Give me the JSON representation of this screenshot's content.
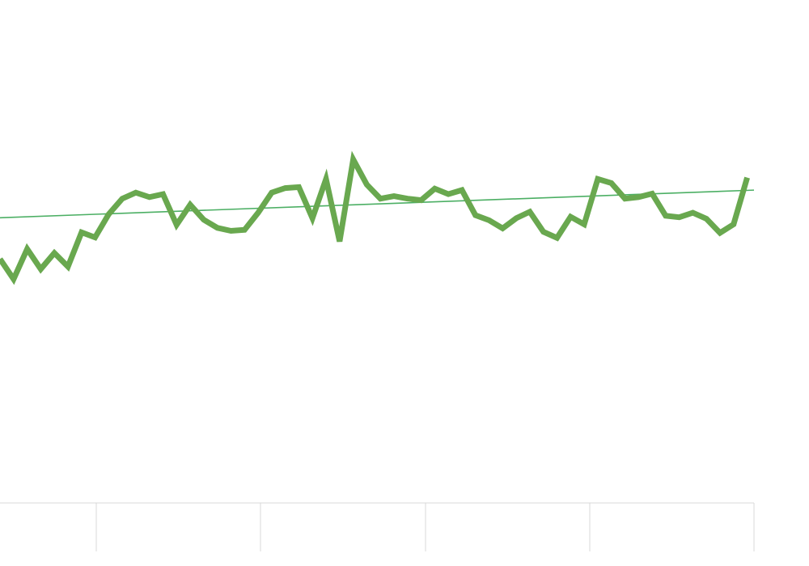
{
  "colors": {
    "series": "#69a84f",
    "trend": "#4caf64",
    "grid": "#d9d9d9",
    "background": "#ffffff"
  },
  "chart_data": {
    "type": "line",
    "title": "",
    "xlabel": "",
    "ylabel": "",
    "grid": false,
    "x": [
      0,
      1,
      2,
      3,
      4,
      5,
      6,
      7,
      8,
      9,
      10,
      11,
      12,
      13,
      14,
      15,
      16,
      17,
      18,
      19,
      20,
      21,
      22,
      23,
      24,
      25,
      26,
      27,
      28,
      29,
      30,
      31,
      32,
      33,
      34,
      35,
      36,
      37,
      38,
      39,
      40,
      41,
      42,
      43,
      44,
      45,
      46,
      47,
      48,
      49,
      50,
      51,
      52,
      53,
      54,
      55
    ],
    "xlim": [
      0,
      55.5
    ],
    "ylim": [
      0,
      100
    ],
    "series": [
      {
        "name": "",
        "values": [
          48.5,
          44.5,
          50.5,
          46.5,
          49.7,
          47.0,
          53.8,
          52.8,
          57.4,
          60.5,
          61.7,
          60.8,
          61.4,
          55.3,
          59.3,
          56.3,
          54.7,
          54.1,
          54.3,
          57.7,
          61.7,
          62.6,
          62.8,
          56.6,
          64.4,
          52.0,
          68.3,
          63.3,
          60.5,
          61.0,
          60.5,
          60.2,
          62.5,
          61.4,
          62.2,
          57.2,
          56.2,
          54.6,
          56.6,
          57.9,
          53.9,
          52.7,
          56.9,
          55.4,
          64.4,
          63.6,
          60.5,
          60.8,
          61.5,
          57.1,
          56.8,
          57.7,
          56.5,
          53.7,
          55.4,
          64.7
        ]
      }
    ],
    "trendline": {
      "start": [
        0,
        56.7
      ],
      "end": [
        55.5,
        62.2
      ]
    },
    "x_divisions": 5
  }
}
